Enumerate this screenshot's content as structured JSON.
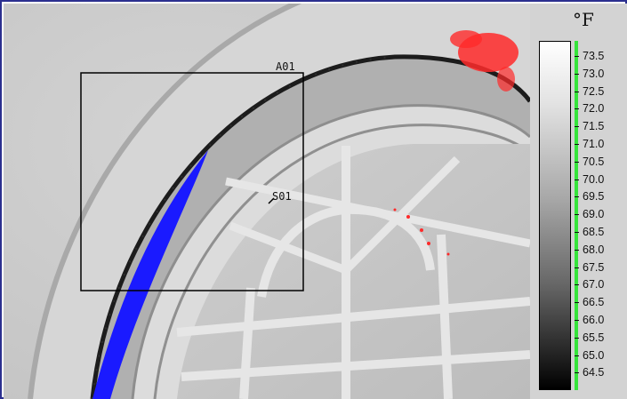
{
  "thermal_image": {
    "area_box_label": "A01",
    "spot_label": "S01"
  },
  "scale": {
    "unit": "°F",
    "ticks": [
      "73.5",
      "73.0",
      "72.5",
      "72.0",
      "71.5",
      "71.0",
      "70.5",
      "70.0",
      "69.5",
      "69.0",
      "68.5",
      "68.0",
      "67.5",
      "67.0",
      "66.5",
      "66.0",
      "65.5",
      "65.0",
      "64.5"
    ],
    "max": 73.5,
    "min": 64.5,
    "colors": {
      "hot_alarm": "#ff2a2a",
      "cold_alarm": "#1a1aff",
      "isotherm_stripe": "#35e43b",
      "frame": "#2b2f8f"
    }
  }
}
